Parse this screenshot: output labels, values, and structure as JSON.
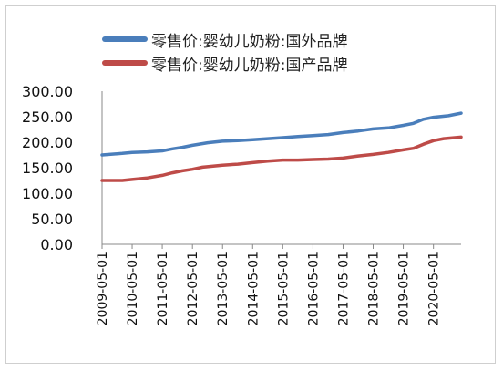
{
  "chart_data": {
    "type": "line",
    "title": "",
    "xlabel": "",
    "ylabel": "",
    "ylim": [
      0,
      300
    ],
    "y_ticks": [
      "0.00",
      "50.00",
      "100.00",
      "150.00",
      "200.00",
      "250.00",
      "300.00"
    ],
    "x_ticks": [
      "2009-05-01",
      "2010-05-01",
      "2011-05-01",
      "2012-05-01",
      "2013-05-01",
      "2014-05-01",
      "2015-05-01",
      "2016-05-01",
      "2017-05-01",
      "2018-05-01",
      "2019-05-01",
      "2020-05-01"
    ],
    "x_range": [
      "2009-05-01",
      "2021-04-01"
    ],
    "grid": false,
    "legend_position": "top",
    "series": [
      {
        "name": "零售价:婴幼儿奶粉:国外品牌",
        "color": "#4a7ebb",
        "points": [
          [
            "2009-05-01",
            175
          ],
          [
            "2010-01-01",
            178
          ],
          [
            "2010-05-01",
            180
          ],
          [
            "2010-11-01",
            181
          ],
          [
            "2011-05-01",
            183
          ],
          [
            "2011-09-01",
            187
          ],
          [
            "2012-01-01",
            190
          ],
          [
            "2012-05-01",
            194
          ],
          [
            "2012-11-01",
            199
          ],
          [
            "2013-05-01",
            202
          ],
          [
            "2013-11-01",
            203
          ],
          [
            "2014-05-01",
            205
          ],
          [
            "2014-11-01",
            207
          ],
          [
            "2015-05-01",
            209
          ],
          [
            "2015-11-01",
            211
          ],
          [
            "2016-05-01",
            213
          ],
          [
            "2016-11-01",
            215
          ],
          [
            "2017-05-01",
            219
          ],
          [
            "2017-11-01",
            222
          ],
          [
            "2018-05-01",
            226
          ],
          [
            "2018-11-01",
            228
          ],
          [
            "2019-05-01",
            233
          ],
          [
            "2019-09-01",
            237
          ],
          [
            "2020-01-01",
            245
          ],
          [
            "2020-05-01",
            249
          ],
          [
            "2020-11-01",
            252
          ],
          [
            "2021-04-01",
            257
          ]
        ]
      },
      {
        "name": "零售价:婴幼儿奶粉:国产品牌",
        "color": "#be4b48",
        "points": [
          [
            "2009-05-01",
            125
          ],
          [
            "2010-01-01",
            125
          ],
          [
            "2010-05-01",
            127
          ],
          [
            "2010-11-01",
            130
          ],
          [
            "2011-05-01",
            135
          ],
          [
            "2011-09-01",
            140
          ],
          [
            "2012-01-01",
            144
          ],
          [
            "2012-05-01",
            147
          ],
          [
            "2012-09-01",
            151
          ],
          [
            "2013-05-01",
            155
          ],
          [
            "2013-11-01",
            157
          ],
          [
            "2014-05-01",
            160
          ],
          [
            "2014-11-01",
            163
          ],
          [
            "2015-05-01",
            165
          ],
          [
            "2015-11-01",
            165
          ],
          [
            "2016-05-01",
            166
          ],
          [
            "2016-11-01",
            167
          ],
          [
            "2017-05-01",
            169
          ],
          [
            "2017-11-01",
            173
          ],
          [
            "2018-05-01",
            176
          ],
          [
            "2018-11-01",
            180
          ],
          [
            "2019-05-01",
            185
          ],
          [
            "2019-09-01",
            188
          ],
          [
            "2020-01-01",
            196
          ],
          [
            "2020-05-01",
            203
          ],
          [
            "2020-09-01",
            207
          ],
          [
            "2021-04-01",
            210
          ]
        ]
      }
    ]
  }
}
